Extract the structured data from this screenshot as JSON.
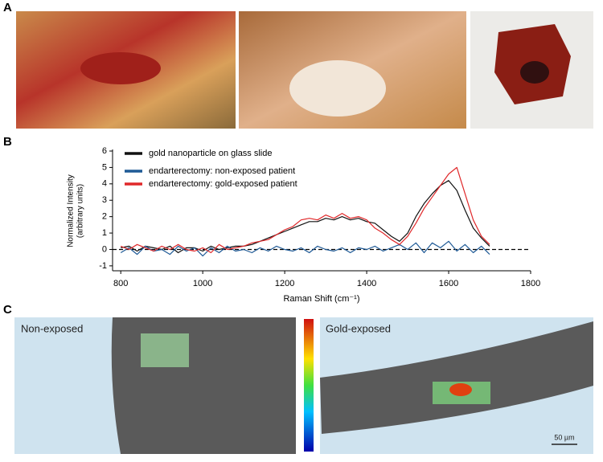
{
  "figure": {
    "panel_a": {
      "label": "A"
    },
    "panel_b": {
      "label": "B"
    },
    "panel_c": {
      "label": "C",
      "left_caption": "Non-exposed",
      "right_caption": "Gold-exposed",
      "scale_bar": "50 µm"
    }
  },
  "chart_data": {
    "type": "line",
    "xlabel": "Raman Shift (cm⁻¹)",
    "ylabel": [
      "Normalized Intensity",
      "(arbitrary units)"
    ],
    "x": [
      800,
      820,
      840,
      860,
      880,
      900,
      920,
      940,
      960,
      980,
      1000,
      1020,
      1040,
      1060,
      1080,
      1100,
      1120,
      1140,
      1160,
      1180,
      1200,
      1220,
      1240,
      1260,
      1280,
      1300,
      1320,
      1340,
      1360,
      1380,
      1400,
      1420,
      1440,
      1460,
      1480,
      1500,
      1520,
      1540,
      1560,
      1580,
      1600,
      1620,
      1640,
      1660,
      1680,
      1700
    ],
    "series": [
      {
        "name": "gold nanoparticle on glass slide",
        "color": "#111111",
        "values": [
          0.1,
          0.2,
          -0.1,
          0.2,
          0.1,
          0,
          0.2,
          -0.2,
          0.1,
          0.1,
          -0.1,
          0.2,
          0,
          0.1,
          0.2,
          0.2,
          0.3,
          0.5,
          0.7,
          0.9,
          1.1,
          1.3,
          1.5,
          1.7,
          1.7,
          1.9,
          1.8,
          2.0,
          1.8,
          1.9,
          1.7,
          1.6,
          1.2,
          0.8,
          0.5,
          1.0,
          2.0,
          2.8,
          3.4,
          3.9,
          4.2,
          3.6,
          2.4,
          1.3,
          0.7,
          0.2
        ]
      },
      {
        "name": "endarterectomy: non-exposed patient",
        "color": "#1f5a96",
        "values": [
          -0.2,
          0.1,
          -0.3,
          0.2,
          -0.1,
          0,
          -0.3,
          0.2,
          -0.1,
          0.1,
          -0.4,
          0.1,
          -0.2,
          0.2,
          -0.1,
          0,
          -0.2,
          0.1,
          -0.1,
          0.2,
          0,
          -0.1,
          0.1,
          -0.2,
          0.2,
          0,
          -0.1,
          0.1,
          -0.2,
          0.1,
          0,
          0.2,
          -0.1,
          0.1,
          0.3,
          0,
          0.4,
          -0.2,
          0.4,
          0.1,
          0.5,
          -0.1,
          0.3,
          -0.2,
          0.2,
          -0.3
        ]
      },
      {
        "name": "endarterectomy: gold-exposed patient",
        "color": "#e0282a",
        "values": [
          0.2,
          0,
          0.3,
          0.1,
          -0.1,
          0.2,
          0,
          0.3,
          0,
          -0.1,
          0.1,
          -0.2,
          0.3,
          0,
          0.1,
          0.2,
          0.4,
          0.5,
          0.6,
          0.9,
          1.2,
          1.4,
          1.8,
          1.9,
          1.8,
          2.1,
          1.9,
          2.2,
          1.9,
          2.0,
          1.8,
          1.3,
          1.0,
          0.6,
          0.3,
          0.8,
          1.6,
          2.5,
          3.2,
          3.9,
          4.6,
          5.0,
          3.4,
          1.8,
          0.8,
          0.3
        ]
      }
    ],
    "xlim": [
      780,
      1800
    ],
    "xticks": [
      800,
      1000,
      1200,
      1400,
      1600,
      1800
    ],
    "ylim": [
      -1.3,
      6
    ],
    "yticks": [
      -1,
      0,
      1,
      2,
      3,
      4,
      5,
      6
    ],
    "reference_line": {
      "y": 0,
      "style": "dashed"
    },
    "legend": "upper-left",
    "grid": false
  }
}
